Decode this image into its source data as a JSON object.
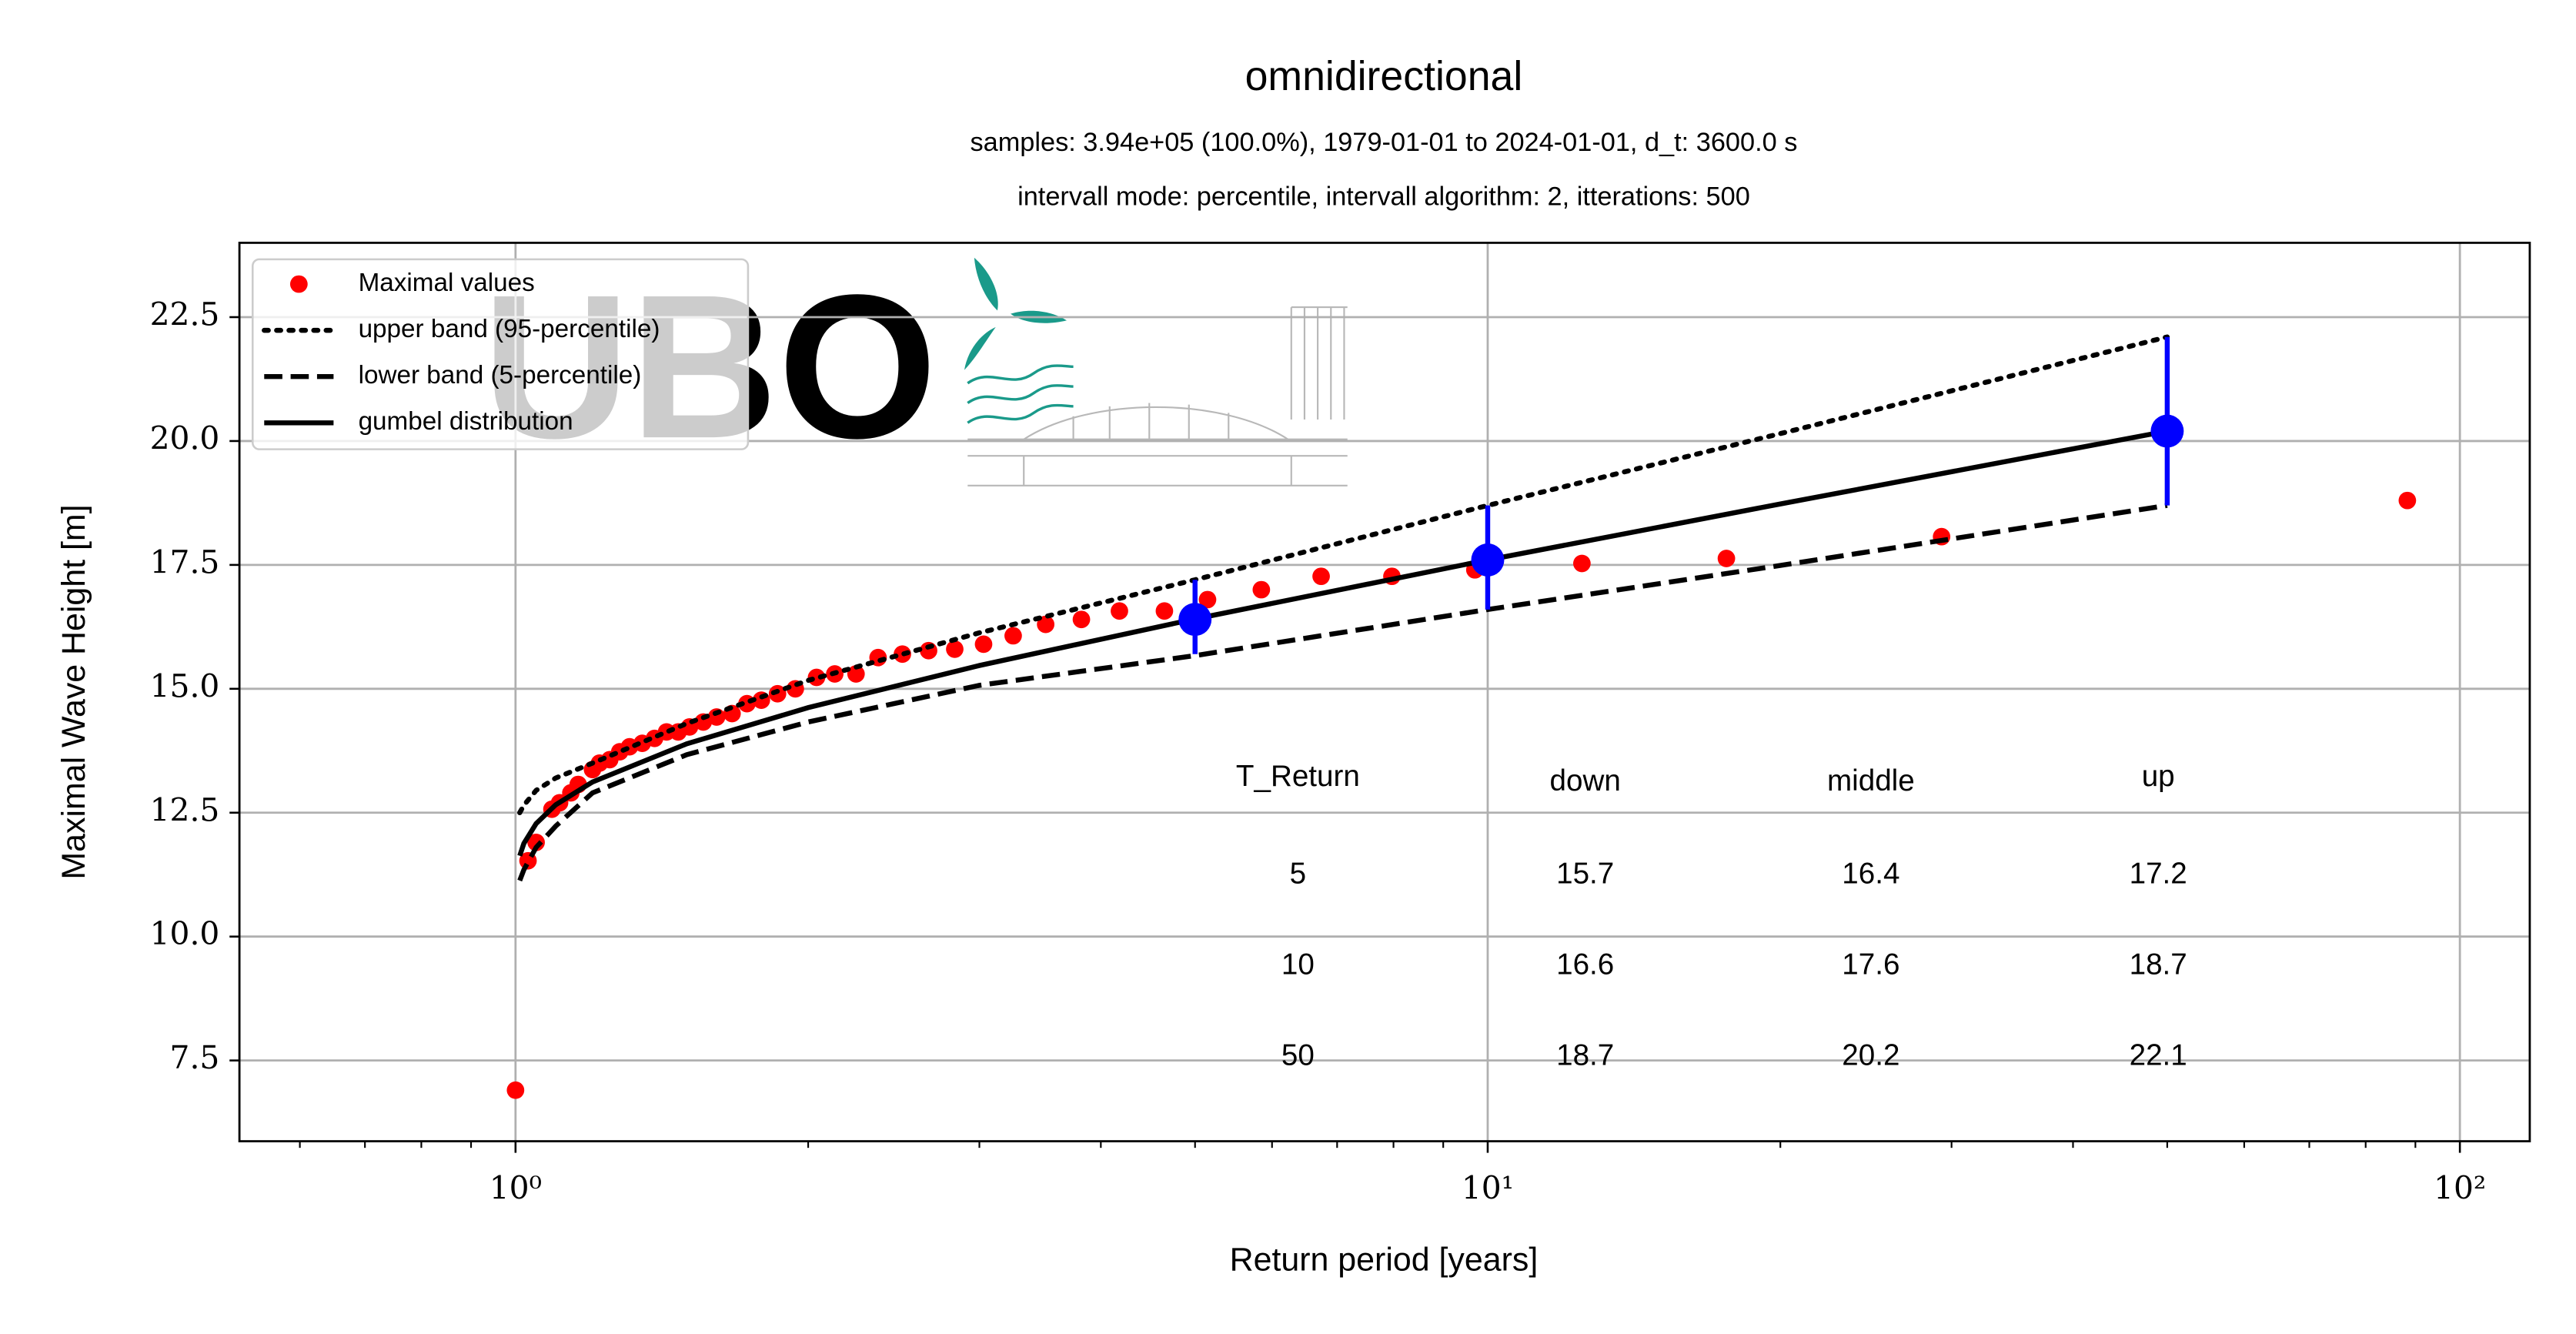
{
  "chart_data": {
    "type": "scatter",
    "title": "omnidirectional",
    "subtitles": [
      "samples: 3.94e+05 (100.0%), 1979-01-01 to 2024-01-01, d_t: 3600.0 s",
      "intervall mode: percentile, intervall algorithm: 2, itterations: 500"
    ],
    "x_label": "Return period [years]",
    "y_label": "Maximal Wave Height [m]",
    "logo_text": "UBO",
    "x_log": true,
    "grid": true,
    "legend_position": "upper left",
    "xlim": [
      0.52,
      118
    ],
    "ylim": [
      5.87,
      24
    ],
    "xticks": [
      {
        "value": 1,
        "label": "10⁰"
      },
      {
        "value": 10,
        "label": "10¹"
      },
      {
        "value": 100,
        "label": "10²"
      }
    ],
    "xminorticks": [
      0.6,
      0.7,
      0.8,
      0.9,
      2,
      3,
      4,
      5,
      6,
      7,
      8,
      9,
      20,
      30,
      40,
      50,
      60,
      70,
      80,
      90
    ],
    "yticks": [
      7.5,
      {
        "value": 10,
        "label": "10.0"
      },
      12.5,
      {
        "value": 15,
        "label": "15.0"
      },
      17.5,
      {
        "value": 20,
        "label": "20.0"
      },
      22.5
    ],
    "series": [
      {
        "name": "Maximal values",
        "type": "scatter",
        "color": "#ff0000",
        "x": [
          88.3,
          29.3,
          17.6,
          12.5,
          9.7,
          7.97,
          6.74,
          5.85,
          5.15,
          4.65,
          4.18,
          3.82,
          3.51,
          3.25,
          3.03,
          2.83,
          2.66,
          2.5,
          2.36,
          2.24,
          2.13,
          2.04,
          1.94,
          1.86,
          1.79,
          1.73,
          1.67,
          1.61,
          1.56,
          1.51,
          1.47,
          1.43,
          1.39,
          1.35,
          1.31,
          1.28,
          1.25,
          1.22,
          1.2,
          1.16,
          1.14,
          1.11,
          1.09,
          1.05,
          1.03,
          1.0
        ],
        "values": [
          18.8,
          18.07,
          17.63,
          17.53,
          17.4,
          17.27,
          17.27,
          17.0,
          16.8,
          16.57,
          16.57,
          16.4,
          16.3,
          16.07,
          15.9,
          15.8,
          15.77,
          15.7,
          15.63,
          15.3,
          15.3,
          15.23,
          15.0,
          14.9,
          14.77,
          14.7,
          14.5,
          14.43,
          14.33,
          14.23,
          14.13,
          14.13,
          14.0,
          13.9,
          13.83,
          13.73,
          13.57,
          13.5,
          13.37,
          13.07,
          12.9,
          12.7,
          12.57,
          11.9,
          11.53,
          6.9
        ]
      },
      {
        "name": "upper band (95-percentile)",
        "type": "line",
        "linestyle": "dotted",
        "color": "#000000",
        "x": [
          1.01,
          1.02,
          1.05,
          1.1,
          1.2,
          1.5,
          2,
          3,
          5,
          10,
          20,
          50
        ],
        "values": [
          12.5,
          12.65,
          12.95,
          13.2,
          13.5,
          14.3,
          15.17,
          16.13,
          17.2,
          18.7,
          20.15,
          22.1
        ]
      },
      {
        "name": "lower band (5-percentile)",
        "type": "line",
        "linestyle": "dashed",
        "color": "#000000",
        "x": [
          1.01,
          1.02,
          1.05,
          1.1,
          1.2,
          1.5,
          2,
          3,
          5,
          10,
          20,
          50
        ],
        "values": [
          11.13,
          11.35,
          11.8,
          12.23,
          12.9,
          13.67,
          14.33,
          15.07,
          15.67,
          16.6,
          17.49,
          18.7
        ]
      },
      {
        "name": "gumbel distribution",
        "type": "line",
        "linestyle": "solid",
        "color": "#000000",
        "x": [
          1.01,
          1.02,
          1.05,
          1.1,
          1.2,
          1.5,
          2,
          3,
          5,
          10,
          20,
          50
        ],
        "values": [
          11.63,
          11.88,
          12.28,
          12.66,
          13.12,
          13.89,
          14.62,
          15.47,
          16.41,
          17.6,
          18.73,
          20.2
        ]
      }
    ],
    "intervals": {
      "color": "#0000ff",
      "x": [
        5,
        10,
        50
      ],
      "values": [
        16.4,
        17.6,
        20.2
      ],
      "lower": [
        15.7,
        16.6,
        18.7
      ],
      "upper": [
        17.2,
        18.7,
        22.1
      ]
    },
    "table_columns": [
      "T_Return",
      "down",
      "middle",
      "up"
    ]
  }
}
